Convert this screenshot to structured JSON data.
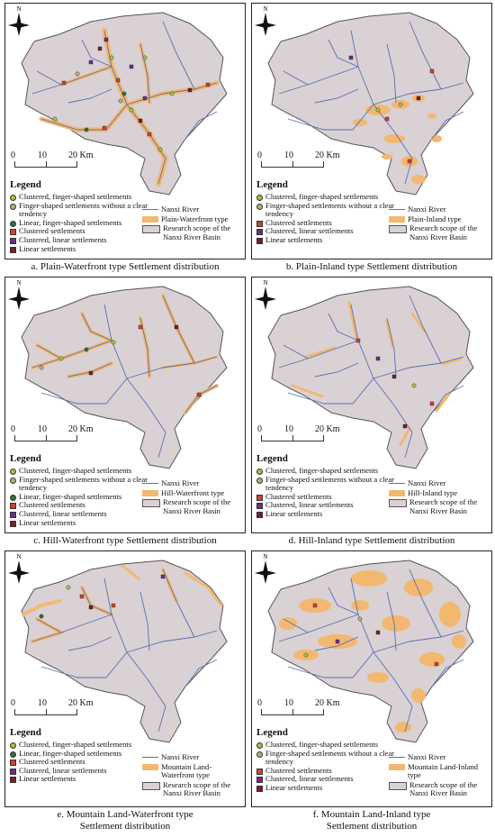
{
  "colors": {
    "basin_fill": "#d9d1d4",
    "basin_stroke": "#555555",
    "river": "#5a6fb3",
    "type_zone": "#f3b870",
    "clustered_finger": "#9bc640",
    "finger_no_tendency": "#b5b07a",
    "linear_finger": "#2e6f3e",
    "clustered": "#d3412c",
    "clustered_linear": "#6b2f86",
    "linear": "#7a1e22"
  },
  "icons": {
    "north_arrow": "north-arrow-icon"
  },
  "scale_labels": [
    "0",
    "10",
    "20 Km"
  ],
  "legend_title": "Legend",
  "legend_common": {
    "river": "Nanxi River",
    "scope": "Research scope of the Nanxi River Basin"
  },
  "panels": [
    {
      "caption": [
        "a. Plain-Waterfront type Settlement distribution"
      ],
      "type_label": "Plain-Waterfront type",
      "items": [
        "Clustered, finger-shaped settlements",
        "Finger-shaped settlements without a clear tendency",
        "Linear, finger-shaped settlements",
        "Clustered settlements",
        "Clustered, linear settlements",
        "Linear settlements"
      ]
    },
    {
      "caption": [
        "b. Plain-Inland type Settlement distribution"
      ],
      "type_label": "Plain-Inland type",
      "items": [
        "Clustered, finger-shaped settlements",
        "Finger-shaped settlements without a clear tendency",
        "Clustered settlements",
        "Clustered, linear settlements",
        "Linear settlements"
      ]
    },
    {
      "caption": [
        "c. Hill-Waterfront type Settlement distribution"
      ],
      "type_label": "Hill-Waterfront type",
      "items": [
        "Clustered, finger-shaped settlements",
        "Finger-shaped settlements without a clear tendency",
        "Linear, finger-shaped settlements",
        "Clustered settlements",
        "Clustered, linear settlements",
        "Linear settlements"
      ]
    },
    {
      "caption": [
        "d. Hill-Inland type Settlement distribution"
      ],
      "type_label": "Hill-Inland type",
      "items": [
        "Clustered, finger-shaped settlements",
        "Finger-shaped settlements without a clear tendency",
        "Clustered settlements",
        "Clustered, linear settlements",
        "Linear settlements"
      ]
    },
    {
      "caption": [
        "e. Mountain Land-Waterfront type",
        "Settlement distribution"
      ],
      "type_label": "Mountain Land-Waterfront type",
      "items": [
        "Clustered, finger-shaped settlements",
        "Linear, finger-shaped settlements",
        "Clustered settlements",
        "Clustered, linear settlements",
        "Linear settlements"
      ]
    },
    {
      "caption": [
        "f. Mountain Land-Inland type",
        "Settlement distribution"
      ],
      "type_label": "Mountain Land-Inland type",
      "items": [
        "Clustered, finger-shaped settlements",
        "Finger-shaped settlements without a clear tendency",
        "Clustered settlements",
        "Clustered, linear settlements",
        "Linear settlements"
      ]
    }
  ]
}
